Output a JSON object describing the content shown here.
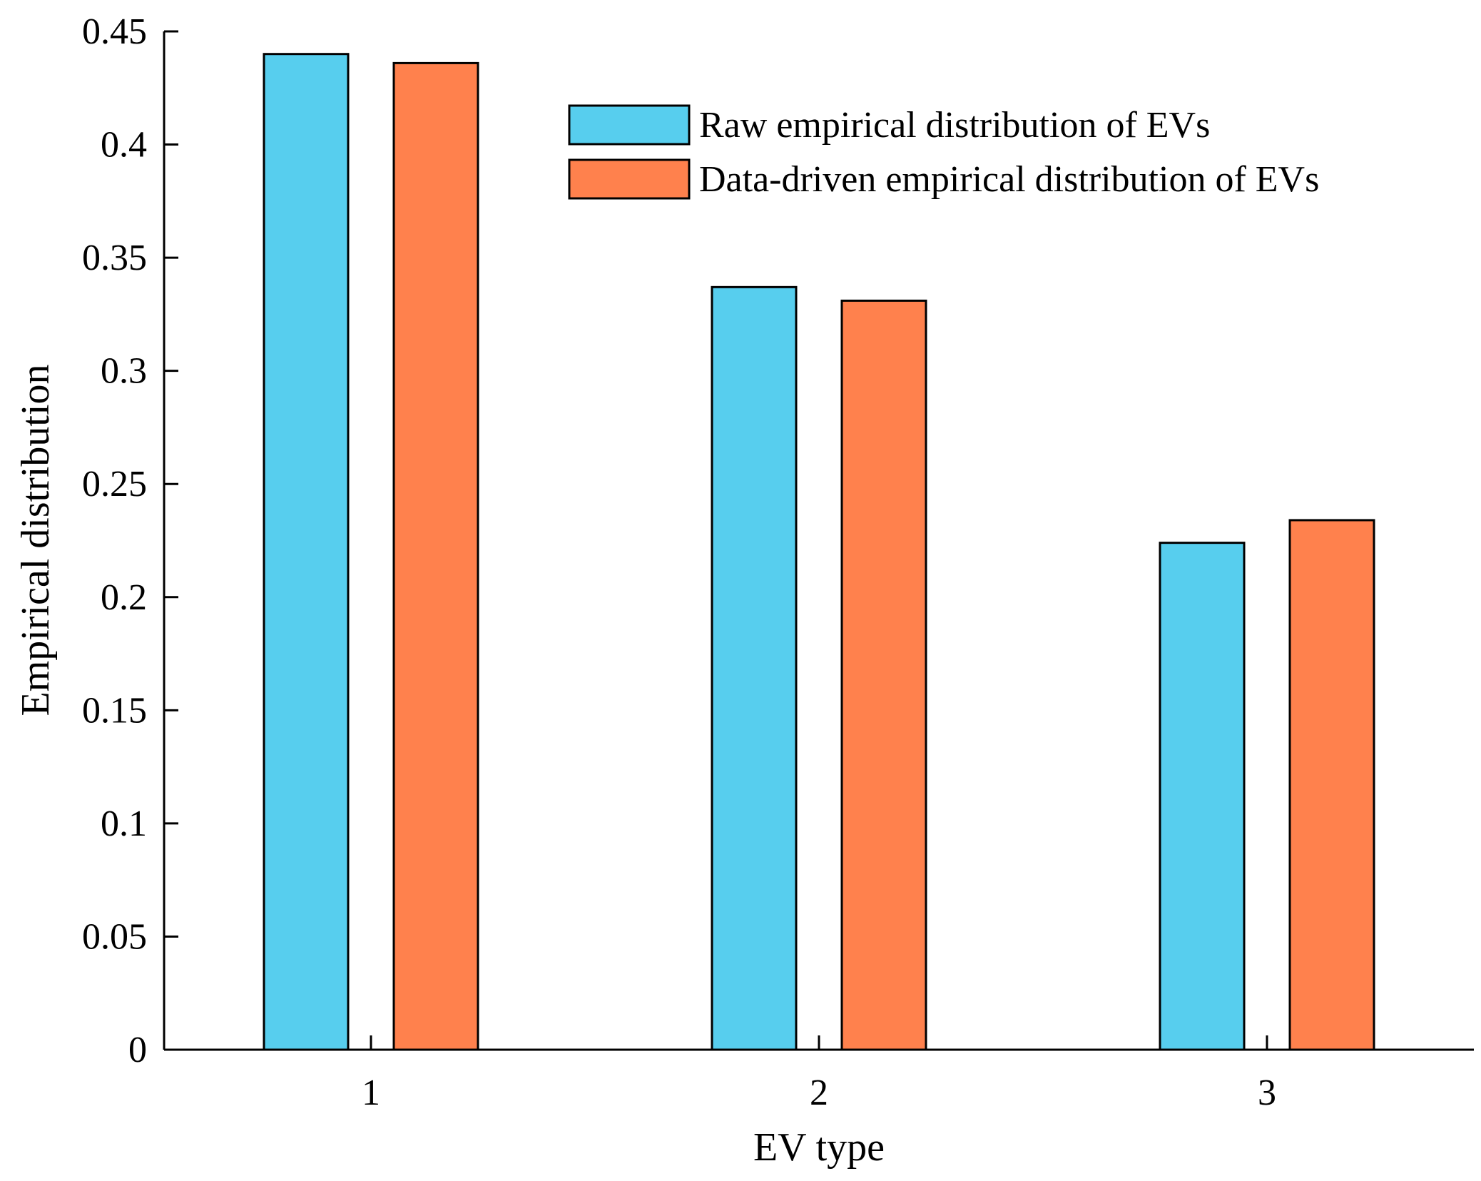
{
  "chart_data": {
    "type": "bar",
    "categories": [
      "1",
      "2",
      "3"
    ],
    "series": [
      {
        "name": "Raw empirical distribution of EVs",
        "values": [
          0.44,
          0.337,
          0.224
        ],
        "color": "#57CEEE"
      },
      {
        "name": "Data-driven empirical distribution of EVs",
        "values": [
          0.436,
          0.331,
          0.234
        ],
        "color": "#FF814D"
      }
    ],
    "xlabel": "EV type",
    "ylabel": "Empirical distribution",
    "ylim": [
      0,
      0.45
    ],
    "yticks": [
      0,
      0.05,
      0.1,
      0.15,
      0.2,
      0.25,
      0.3,
      0.35,
      0.4,
      0.45
    ],
    "ytick_labels": [
      "0",
      "0.05",
      "0.1",
      "0.15",
      "0.2",
      "0.25",
      "0.3",
      "0.35",
      "0.4",
      "0.45"
    ],
    "grid": false,
    "legend_position": "top-right"
  }
}
